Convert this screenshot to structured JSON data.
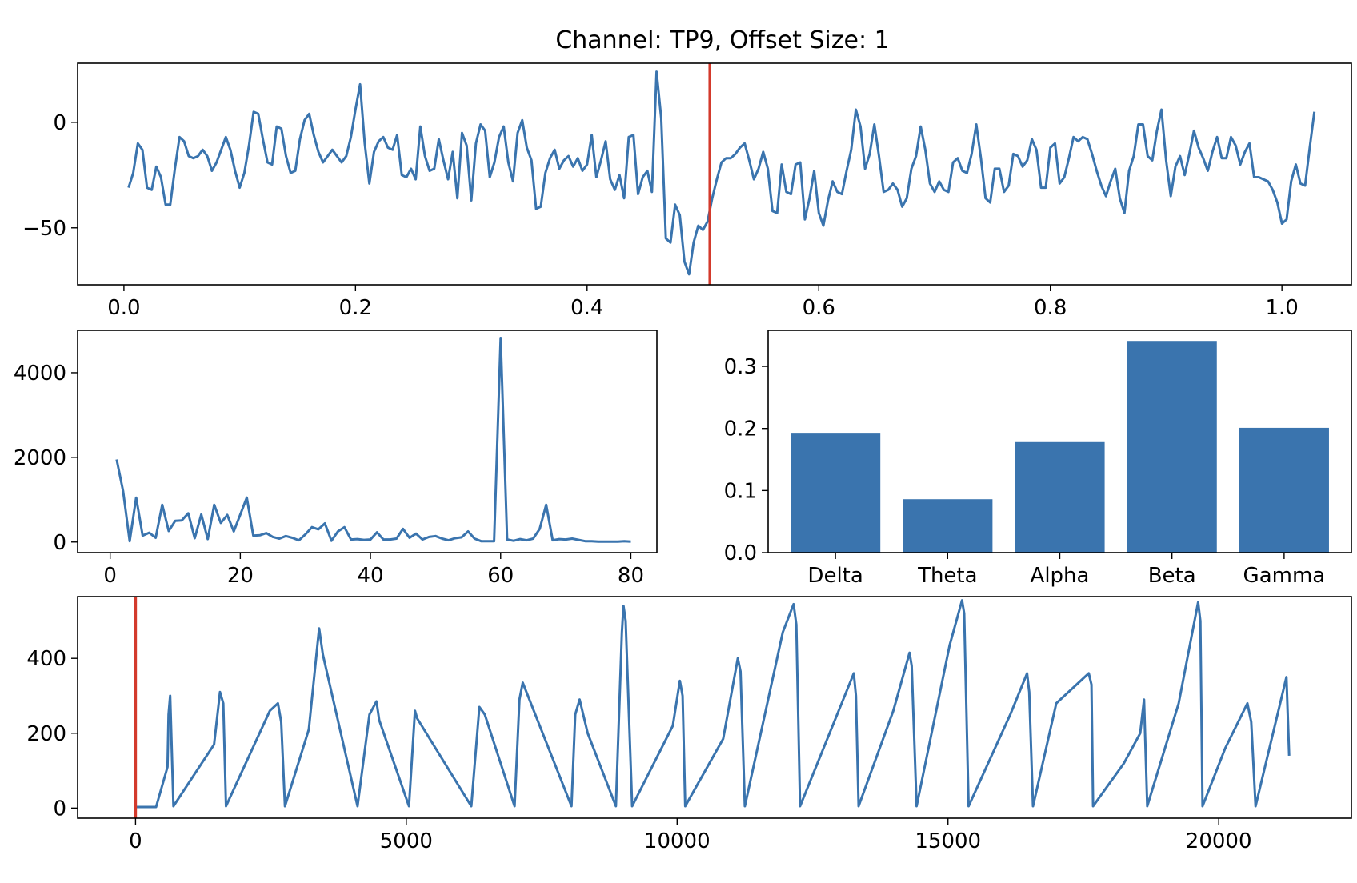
{
  "title": "Channel: TP9, Offset Size: 1",
  "colors": {
    "line": "#3a74ae",
    "bar": "#3a74ae",
    "marker": "#d33a2c",
    "axis": "#000000"
  },
  "chart_data": [
    {
      "type": "line",
      "name": "time-series",
      "xlim": [
        -0.04,
        1.06
      ],
      "ylim": [
        -77,
        28
      ],
      "xticks": [
        "0.0",
        "0.2",
        "0.4",
        "0.6",
        "0.8",
        "1.0"
      ],
      "yticks": [
        "0",
        "−50"
      ],
      "marker_x": 0.506,
      "x_start": 0.004,
      "x_step": 0.004,
      "values": [
        -31,
        -24,
        -10,
        -13,
        -31,
        -32,
        -21,
        -26,
        -39,
        -39,
        -22,
        -7,
        -9,
        -16,
        -17,
        -16,
        -13,
        -16,
        -23,
        -19,
        -13,
        -7,
        -13,
        -23,
        -31,
        -24,
        -11,
        5,
        4,
        -8,
        -19,
        -20,
        -2,
        -3,
        -16,
        -24,
        -23,
        -8,
        1,
        4,
        -6,
        -14,
        -19,
        -16,
        -13,
        -16,
        -19,
        -16,
        -7,
        6,
        18,
        -10,
        -29,
        -14,
        -9,
        -7,
        -12,
        -13,
        -6,
        -25,
        -26,
        -22,
        -27,
        -2,
        -16,
        -23,
        -22,
        -8,
        -18,
        -27,
        -14,
        -36,
        -5,
        -11,
        -37,
        -10,
        -1,
        -4,
        -26,
        -19,
        -7,
        -2,
        -19,
        -28,
        -5,
        1,
        -12,
        -18,
        -41,
        -40,
        -24,
        -17,
        -13,
        -22,
        -18,
        -16,
        -21,
        -17,
        -23,
        -20,
        -6,
        -26,
        -18,
        -9,
        -27,
        -32,
        -25,
        -36,
        -7,
        -6,
        -34,
        -26,
        -23,
        -33,
        24,
        2,
        -55,
        -57,
        -39,
        -44,
        -66,
        -72,
        -57,
        -49,
        -51,
        -47,
        -36,
        -27,
        -19,
        -17,
        -17,
        -15,
        -12,
        -10,
        -18,
        -27,
        -22,
        -14,
        -22,
        -42,
        -43,
        -20,
        -33,
        -34,
        -20,
        -19,
        -46,
        -36,
        -23,
        -43,
        -49,
        -37,
        -28,
        -33,
        -34,
        -23,
        -13,
        6,
        -2,
        -22,
        -15,
        -1,
        -16,
        -33,
        -32,
        -29,
        -32,
        -40,
        -36,
        -22,
        -16,
        -2,
        -13,
        -29,
        -33,
        -28,
        -32,
        -33,
        -19,
        -17,
        -23,
        -24,
        -15,
        -1,
        -17,
        -36,
        -38,
        -22,
        -22,
        -33,
        -30,
        -15,
        -16,
        -21,
        -18,
        -8,
        -13,
        -31,
        -31,
        -12,
        -10,
        -29,
        -26,
        -17,
        -7,
        -9,
        -7,
        -8,
        -15,
        -23,
        -30,
        -35,
        -28,
        -22,
        -36,
        -43,
        -23,
        -16,
        -1,
        -1,
        -16,
        -18,
        -4,
        6,
        -18,
        -35,
        -21,
        -16,
        -25,
        -15,
        -4,
        -12,
        -17,
        -23,
        -14,
        -7,
        -17,
        -17,
        -7,
        -11,
        -20,
        -14,
        -10,
        -26,
        -26,
        -27,
        -28,
        -32,
        -38,
        -48,
        -46,
        -28,
        -20,
        -29,
        -30,
        -12,
        5
      ]
    },
    {
      "type": "line",
      "name": "spectrum",
      "xlim": [
        -5,
        84
      ],
      "ylim": [
        -250,
        5000
      ],
      "xticks": [
        "0",
        "20",
        "40",
        "60",
        "80"
      ],
      "yticks": [
        "0",
        "2000",
        "4000"
      ],
      "x": [
        1,
        2,
        3,
        4,
        5,
        6,
        7,
        8,
        9,
        10,
        11,
        12,
        13,
        14,
        15,
        16,
        17,
        18,
        19,
        20,
        21,
        22,
        23,
        24,
        25,
        26,
        27,
        28,
        29,
        30,
        31,
        32,
        33,
        34,
        35,
        36,
        37,
        38,
        39,
        40,
        41,
        42,
        43,
        44,
        45,
        46,
        47,
        48,
        49,
        50,
        51,
        52,
        53,
        54,
        55,
        56,
        57,
        58,
        59,
        60,
        61,
        62,
        63,
        64,
        65,
        66,
        67,
        68,
        69,
        70,
        71,
        72,
        73,
        74,
        75,
        76,
        77,
        78,
        79,
        80
      ],
      "values": [
        1950,
        1200,
        20,
        1050,
        150,
        220,
        100,
        880,
        260,
        500,
        510,
        680,
        90,
        650,
        70,
        880,
        450,
        640,
        250,
        650,
        1050,
        150,
        160,
        210,
        120,
        80,
        140,
        100,
        40,
        180,
        350,
        300,
        440,
        30,
        250,
        350,
        60,
        70,
        50,
        60,
        230,
        60,
        60,
        80,
        310,
        100,
        200,
        60,
        120,
        140,
        80,
        40,
        90,
        110,
        250,
        80,
        20,
        20,
        20,
        4820,
        60,
        30,
        70,
        40,
        80,
        310,
        880,
        40,
        70,
        60,
        80,
        50,
        20,
        20,
        10,
        10,
        10,
        10,
        20,
        10
      ]
    },
    {
      "type": "bar",
      "name": "band-power",
      "categories": [
        "Delta",
        "Theta",
        "Alpha",
        "Beta",
        "Gamma"
      ],
      "values": [
        0.193,
        0.086,
        0.178,
        0.341,
        0.201
      ],
      "ylim": [
        0,
        0.358
      ],
      "yticks": [
        "0.0",
        "0.1",
        "0.2",
        "0.3"
      ]
    },
    {
      "type": "line",
      "name": "full-recording",
      "xlim": [
        -1070,
        22450
      ],
      "ylim": [
        -27,
        565
      ],
      "xticks": [
        "0",
        "5000",
        "10000",
        "15000",
        "20000"
      ],
      "yticks": [
        "0",
        "200",
        "400"
      ],
      "marker_x": 0,
      "x": [
        0,
        380,
        590,
        610,
        640,
        700,
        1450,
        1560,
        1620,
        1670,
        2480,
        2630,
        2690,
        2760,
        3200,
        3390,
        3460,
        4100,
        4320,
        4450,
        4500,
        5050,
        5160,
        5200,
        6200,
        6350,
        6450,
        7000,
        7090,
        7150,
        8050,
        8120,
        8200,
        8350,
        8870,
        8980,
        9010,
        9050,
        9170,
        9920,
        10050,
        10100,
        10150,
        10850,
        11120,
        11170,
        11250,
        11950,
        12150,
        12200,
        12270,
        13010,
        13260,
        13300,
        13350,
        13990,
        14290,
        14330,
        14420,
        15030,
        15260,
        15300,
        15380,
        16150,
        16460,
        16500,
        16570,
        17000,
        17600,
        17650,
        17680,
        18250,
        18550,
        18620,
        18680,
        19260,
        19620,
        19660,
        19700,
        20120,
        20530,
        20600,
        20680,
        21250,
        21300
      ],
      "values": [
        3,
        3,
        110,
        250,
        300,
        5,
        170,
        310,
        280,
        5,
        260,
        280,
        230,
        5,
        210,
        480,
        410,
        5,
        250,
        285,
        235,
        5,
        260,
        240,
        5,
        270,
        250,
        5,
        290,
        335,
        5,
        250,
        290,
        200,
        5,
        470,
        540,
        500,
        5,
        220,
        340,
        300,
        5,
        185,
        400,
        365,
        5,
        470,
        545,
        490,
        5,
        270,
        360,
        300,
        5,
        260,
        415,
        380,
        5,
        435,
        555,
        520,
        5,
        250,
        360,
        310,
        5,
        280,
        360,
        330,
        5,
        120,
        200,
        290,
        5,
        280,
        550,
        500,
        5,
        160,
        280,
        230,
        5,
        350,
        140
      ]
    }
  ]
}
